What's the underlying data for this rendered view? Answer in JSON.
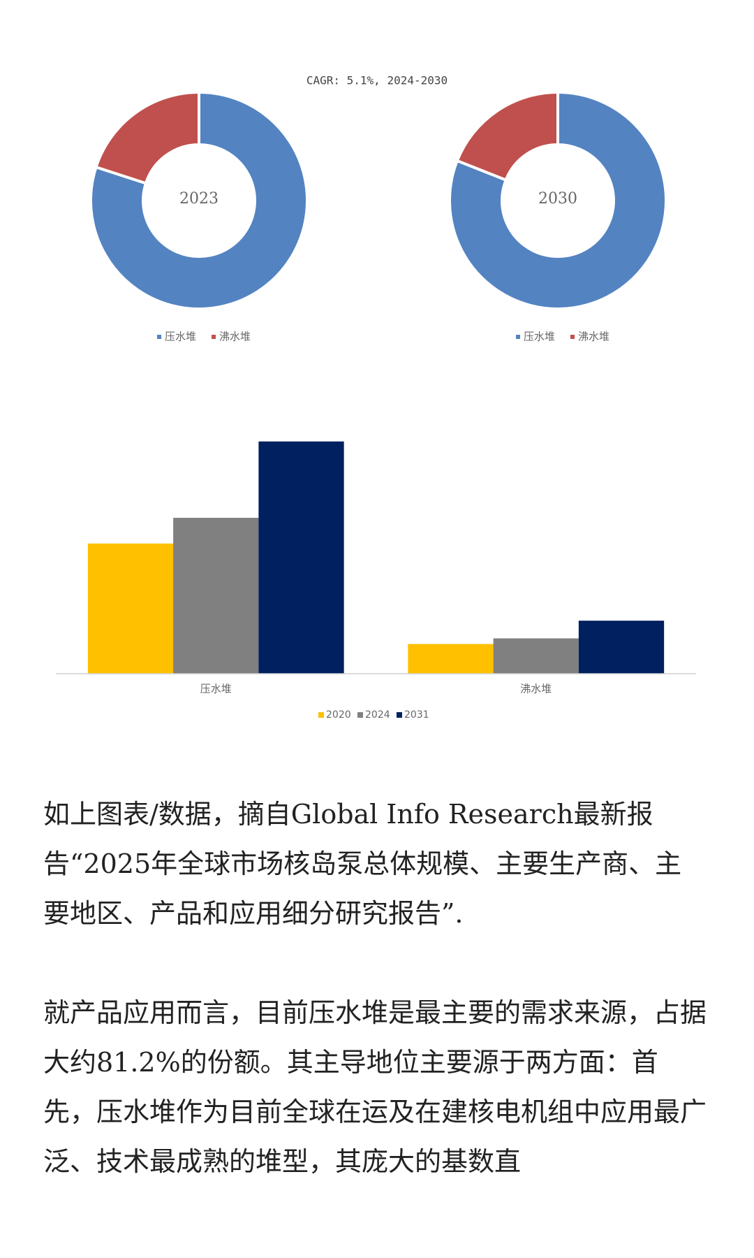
{
  "chart_data": [
    {
      "type": "donut",
      "title": "CAGR:  5.1%, 2024-2030",
      "center_label": "2023",
      "categories": [
        "压水堆",
        "沸水堆"
      ],
      "values": [
        80,
        20
      ],
      "colors": [
        "#5383c1",
        "#c0504d"
      ],
      "legend": "bottom"
    },
    {
      "type": "donut",
      "center_label": "2030",
      "categories": [
        "压水堆",
        "沸水堆"
      ],
      "values": [
        81,
        19
      ],
      "colors": [
        "#5383c1",
        "#c0504d"
      ],
      "legend": "bottom"
    },
    {
      "type": "bar",
      "categories": [
        "压水堆",
        "沸水堆"
      ],
      "ylim": [
        0,
        300
      ],
      "legend": "bottom",
      "grid": false,
      "series": [
        {
          "name": "2020",
          "color": "#ffc000",
          "values": [
            162,
            37
          ]
        },
        {
          "name": "2024",
          "color": "#808080",
          "values": [
            194,
            44
          ]
        },
        {
          "name": "2031",
          "color": "#002060",
          "values": [
            289,
            66
          ]
        }
      ]
    }
  ],
  "article": {
    "paragraphs": [
      "如上图表/数据，摘自Global Info Research最新报告“2025年全球市场核岛泵总体规模、主要生产商、主要地区、产品和应用细分研究报告”.",
      "就产品应用而言，目前压水堆是最主要的需求来源，占据大约81.2%的份额。其主导地位主要源于两方面：首先，压水堆作为目前全球在运及在建核电机组中应用最广泛、技术最成熟的堆型，其庞大的基数直"
    ]
  }
}
